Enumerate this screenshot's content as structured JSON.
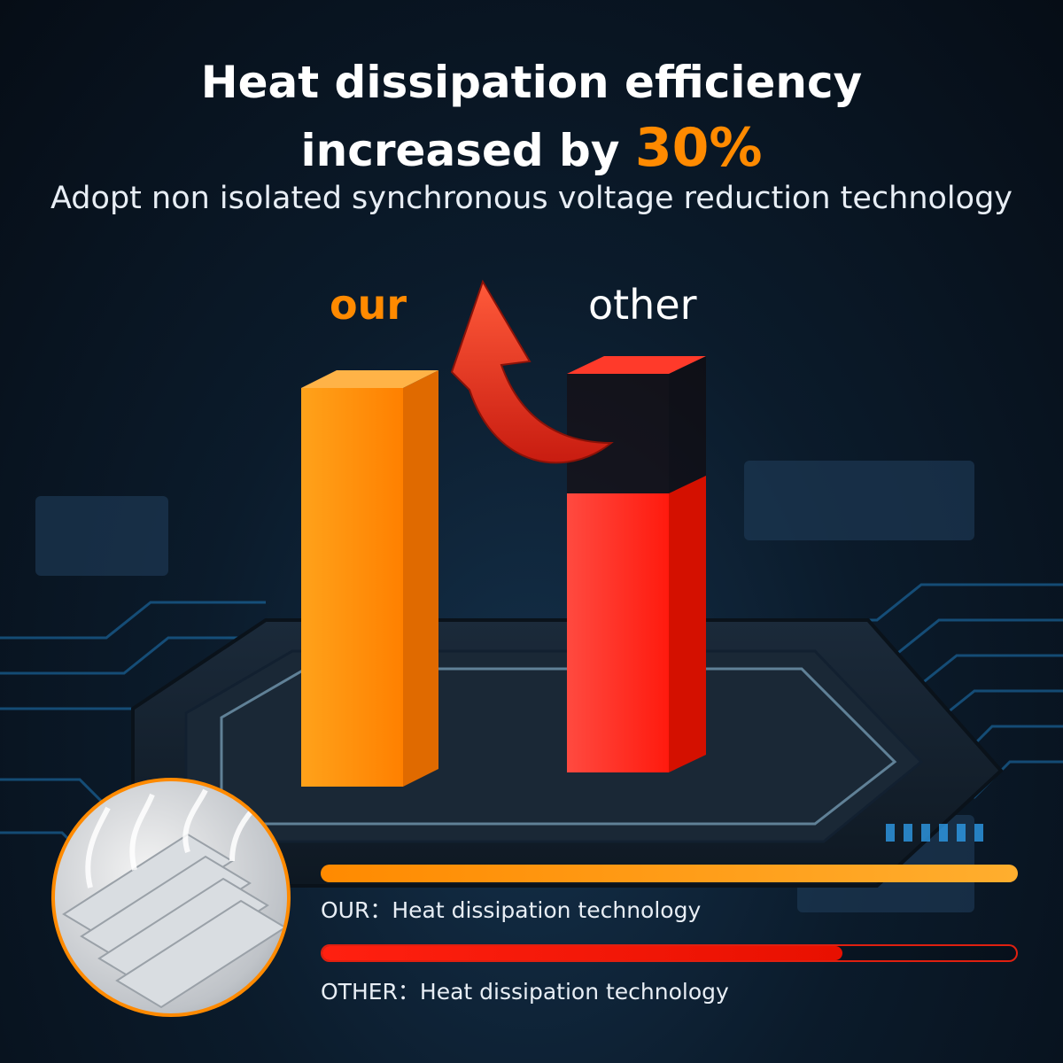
{
  "header": {
    "title_line1": "Heat dissipation efficiency",
    "title_line2_prefix": "increased by",
    "title_highlight": "30%",
    "subtitle": "Adopt non isolated synchronous voltage reduction technology"
  },
  "chart_data": {
    "type": "bar",
    "categories": [
      "our",
      "other"
    ],
    "values": [
      100,
      70
    ],
    "improvement_percent": 30,
    "colors": {
      "our": "#ff8a00",
      "other": "#ff2a1a"
    }
  },
  "legend": {
    "our_label": "OUR：Heat dissipation technology",
    "our_fill": 1.0,
    "other_label": "OTHER：Heat dissipation technology",
    "other_fill": 0.75
  },
  "icons": {
    "heatsink": "heatsink-icon",
    "arrow": "curved-up-arrow-icon"
  }
}
